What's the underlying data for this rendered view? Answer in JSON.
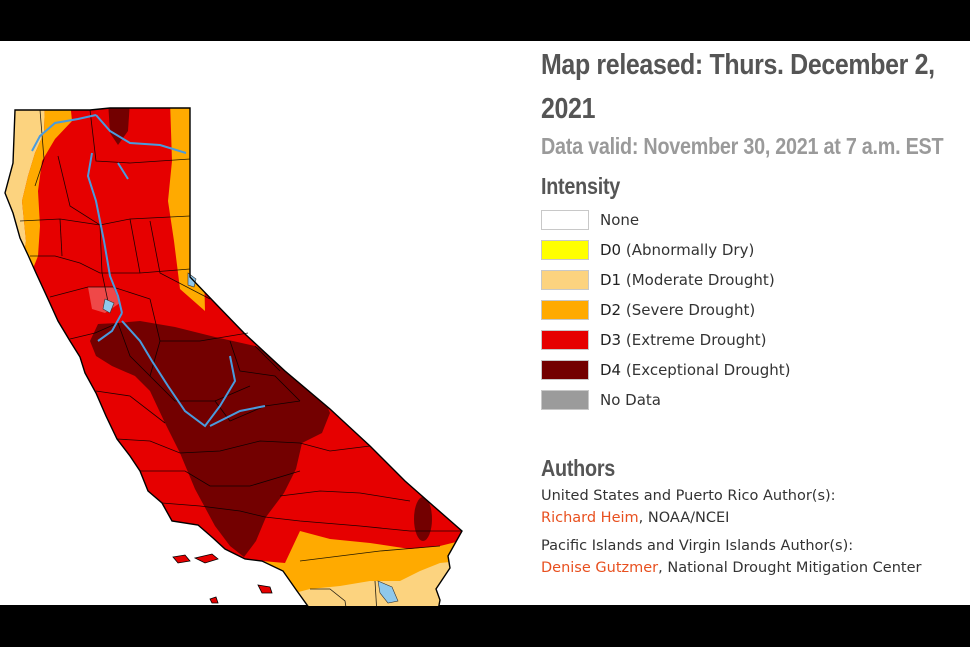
{
  "header": {
    "title": "Map released: Thurs. December 2, 2021",
    "subtitle": "Data valid: November 30, 2021 at 7 a.m. EST"
  },
  "legend": {
    "heading": "Intensity",
    "items": [
      {
        "code": "",
        "label": "None",
        "color": "#ffffff"
      },
      {
        "code": "D0",
        "label": "(Abnormally Dry)",
        "color": "#ffff00"
      },
      {
        "code": "D1",
        "label": "(Moderate Drought)",
        "color": "#fcd37f"
      },
      {
        "code": "D2",
        "label": "(Severe Drought)",
        "color": "#ffaa00"
      },
      {
        "code": "D3",
        "label": "(Extreme Drought)",
        "color": "#e60000"
      },
      {
        "code": "D4",
        "label": "(Exceptional Drought)",
        "color": "#730000"
      },
      {
        "code": "",
        "label": "No Data",
        "color": "#9b9b9b"
      }
    ]
  },
  "authors": {
    "heading": "Authors",
    "groups": [
      {
        "role": "United States and Puerto Rico Author(s):",
        "name": "Richard Heim",
        "org": ", NOAA/NCEI"
      },
      {
        "role": "Pacific Islands and Virgin Islands Author(s):",
        "name": "Denise Gutzmer",
        "org": ", National Drought Mitigation Center"
      }
    ]
  },
  "map": {
    "region": "California",
    "colors": {
      "d1": "#fcd37f",
      "d2": "#ffaa00",
      "d3": "#e60000",
      "d4": "#730000",
      "water": "#6ab4e8",
      "border": "#000000"
    }
  }
}
